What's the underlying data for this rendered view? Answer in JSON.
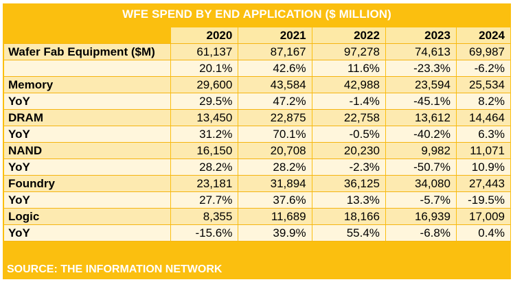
{
  "title": "WFE SPEND BY END APPLICATION ($ MILLION)",
  "columns": [
    "2020",
    "2021",
    "2022",
    "2023",
    "2024"
  ],
  "rows": [
    {
      "label": "Wafer Fab Equipment ($M)",
      "values": [
        "61,137",
        "87,167",
        "97,278",
        "74,613",
        "69,987"
      ]
    },
    {
      "label": "",
      "values": [
        "20.1%",
        "42.6%",
        "11.6%",
        "-23.3%",
        "-6.2%"
      ]
    },
    {
      "label": "Memory",
      "values": [
        "29,600",
        "43,584",
        "42,988",
        "23,594",
        "25,534"
      ]
    },
    {
      "label": "YoY",
      "values": [
        "29.5%",
        "47.2%",
        "-1.4%",
        "-45.1%",
        "8.2%"
      ]
    },
    {
      "label": "DRAM",
      "values": [
        "13,450",
        "22,875",
        "22,758",
        "13,612",
        "14,464"
      ]
    },
    {
      "label": "YoY",
      "values": [
        "31.2%",
        "70.1%",
        "-0.5%",
        "-40.2%",
        "6.3%"
      ]
    },
    {
      "label": "NAND",
      "values": [
        "16,150",
        "20,708",
        "20,230",
        "9,982",
        "11,071"
      ]
    },
    {
      "label": "YoY",
      "values": [
        "28.2%",
        "28.2%",
        "-2.3%",
        "-50.7%",
        "10.9%"
      ]
    },
    {
      "label": "Foundry",
      "values": [
        "23,181",
        "31,894",
        "36,125",
        "34,080",
        "27,443"
      ]
    },
    {
      "label": "YoY",
      "values": [
        "27.7%",
        "37.6%",
        "13.3%",
        "-5.7%",
        "-19.5%"
      ]
    },
    {
      "label": "Logic",
      "values": [
        "8,355",
        "11,689",
        "18,166",
        "16,939",
        "17,009"
      ]
    },
    {
      "label": "YoY",
      "values": [
        "-15.6%",
        "39.9%",
        "55.4%",
        "-6.8%",
        "0.4%"
      ]
    }
  ],
  "source": "SOURCE: THE INFORMATION NETWORK",
  "colors": {
    "accent": "#fbbf0f",
    "row_dark": "#fdeab0",
    "row_light": "#fff6dc",
    "title_text": "#ffffff"
  }
}
